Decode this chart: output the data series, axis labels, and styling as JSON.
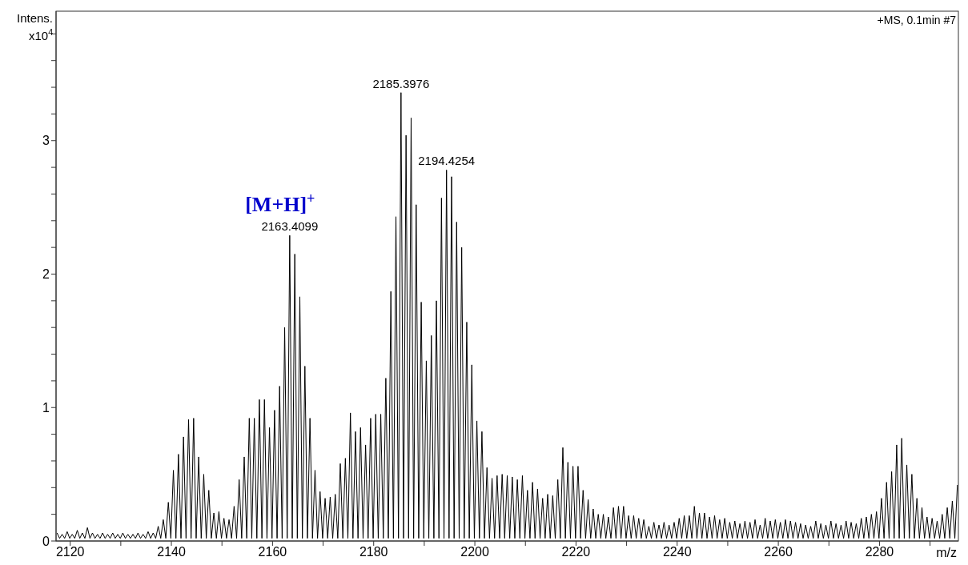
{
  "chart_data": {
    "type": "line",
    "xlabel": "m/z",
    "ylabel": "Intens.\nx10$^{4}$",
    "xlim": [
      2117.2,
      2295.6
    ],
    "ylim": [
      0,
      3.97
    ],
    "xticks": [
      2120,
      {
        "value": 2130,
        "label": null
      },
      2140,
      {
        "value": 2150,
        "label": null
      },
      2160,
      {
        "value": 2170,
        "label": null
      },
      2180,
      {
        "value": 2190,
        "label": null
      },
      2200,
      {
        "value": 2210,
        "label": null
      },
      2220,
      {
        "value": 2230,
        "label": null
      },
      2240,
      {
        "value": 2250,
        "label": null
      },
      2260,
      {
        "value": 2270,
        "label": null
      },
      2280,
      {
        "value": 2290,
        "label": null
      }
    ],
    "yticks": [
      0,
      {
        "value": 0.2,
        "label": null
      },
      {
        "value": 0.4,
        "label": null
      },
      {
        "value": 0.6,
        "label": null
      },
      {
        "value": 0.8,
        "label": null
      },
      1,
      {
        "value": 1.2,
        "label": null
      },
      {
        "value": 1.4,
        "label": null
      },
      {
        "value": 1.6,
        "label": null
      },
      {
        "value": 1.8,
        "label": null
      },
      2,
      {
        "value": 2.2,
        "label": null
      },
      {
        "value": 2.4,
        "label": null
      },
      {
        "value": 2.6,
        "label": null
      },
      {
        "value": 2.8,
        "label": null
      },
      3,
      {
        "value": 3.2,
        "label": null
      },
      {
        "value": 3.4,
        "label": null
      },
      {
        "value": 3.6,
        "label": null
      },
      {
        "value": 3.8,
        "label": null
      }
    ],
    "annotations": [
      "+MS, 0.1min #7",
      {
        "text": "2163.4099",
        "x": 2163.4,
        "y": 2.29
      },
      {
        "text": "[M+H]$^{+}$",
        "x": 2163.4,
        "y": 2.29
      },
      {
        "text": "2185.3976",
        "x": 2185.4,
        "y": 3.36
      },
      {
        "text": "2194.4254",
        "x": 2194.4,
        "y": 2.78
      }
    ],
    "series": [
      {
        "color": "#000000",
        "x": [
          2117.4,
          2117.9,
          2118.4,
          2118.9,
          2119.4,
          2119.9,
          2120.4,
          2120.9,
          2121.4,
          2121.9,
          2122.4,
          2122.9,
          2123.4,
          2123.9,
          2124.4,
          2124.9,
          2125.4,
          2125.9,
          2126.4,
          2126.9,
          2127.4,
          2127.9,
          2128.4,
          2128.9,
          2129.4,
          2129.9,
          2130.4,
          2130.9,
          2131.4,
          2131.9,
          2132.4,
          2132.9,
          2133.4,
          2133.9,
          2134.4,
          2134.9,
          2135.4,
          2135.9,
          2136.4,
          2136.9,
          2137.4,
          2137.9,
          2138.4,
          2138.9,
          2139.4,
          2139.9,
          2140.4,
          2140.9,
          2141.4,
          2141.9,
          2142.4,
          2142.9,
          2143.4,
          2143.9,
          2144.4,
          2144.9,
          2145.4,
          2145.9,
          2146.4,
          2146.9,
          2147.4,
          2147.9,
          2148.4,
          2148.9,
          2149.4,
          2149.9,
          2150.4,
          2150.9,
          2151.4,
          2151.9,
          2152.4,
          2152.9,
          2153.4,
          2153.9,
          2154.4,
          2154.9,
          2155.4,
          2155.9,
          2156.4,
          2156.9,
          2157.4,
          2157.9,
          2158.4,
          2158.9,
          2159.4,
          2159.9,
          2160.4,
          2160.9,
          2161.4,
          2161.9,
          2162.4,
          2162.9,
          2163.4,
          2163.9,
          2164.4,
          2164.9,
          2165.4,
          2165.9,
          2166.4,
          2166.9,
          2167.4,
          2167.9,
          2168.4,
          2168.9,
          2169.4,
          2169.9,
          2170.4,
          2170.9,
          2171.4,
          2171.9,
          2172.4,
          2172.9,
          2173.4,
          2173.9,
          2174.4,
          2174.9,
          2175.4,
          2175.9,
          2176.4,
          2176.9,
          2177.4,
          2177.9,
          2178.4,
          2178.9,
          2179.4,
          2179.9,
          2180.4,
          2180.9,
          2181.4,
          2181.9,
          2182.4,
          2182.9,
          2183.4,
          2183.9,
          2184.4,
          2184.9,
          2185.4,
          2185.9,
          2186.4,
          2186.9,
          2187.4,
          2187.9,
          2188.4,
          2188.9,
          2189.4,
          2189.9,
          2190.4,
          2190.9,
          2191.4,
          2191.9,
          2192.4,
          2192.9,
          2193.4,
          2193.9,
          2194.4,
          2194.9,
          2195.4,
          2195.9,
          2196.4,
          2196.9,
          2197.4,
          2197.9,
          2198.4,
          2198.9,
          2199.4,
          2199.9,
          2200.4,
          2200.9,
          2201.4,
          2201.9,
          2202.4,
          2202.9,
          2203.4,
          2203.9,
          2204.4,
          2204.9,
          2205.4,
          2205.9,
          2206.4,
          2206.9,
          2207.4,
          2207.9,
          2208.4,
          2208.9,
          2209.4,
          2209.9,
          2210.4,
          2210.9,
          2211.4,
          2211.9,
          2212.4,
          2212.9,
          2213.4,
          2213.9,
          2214.4,
          2214.9,
          2215.4,
          2215.9,
          2216.4,
          2216.9,
          2217.4,
          2217.9,
          2218.4,
          2218.9,
          2219.4,
          2219.9,
          2220.4,
          2220.9,
          2221.4,
          2221.9,
          2222.4,
          2222.9,
          2223.4,
          2223.9,
          2224.4,
          2224.9,
          2225.4,
          2225.9,
          2226.4,
          2226.9,
          2227.4,
          2227.9,
          2228.4,
          2228.9,
          2229.4,
          2229.9,
          2230.4,
          2230.9,
          2231.4,
          2231.9,
          2232.4,
          2232.9,
          2233.4,
          2233.9,
          2234.4,
          2234.9,
          2235.4,
          2235.9,
          2236.4,
          2236.9,
          2237.4,
          2237.9,
          2238.4,
          2238.9,
          2239.4,
          2239.9,
          2240.4,
          2240.9,
          2241.4,
          2241.9,
          2242.4,
          2242.9,
          2243.4,
          2243.9,
          2244.4,
          2244.9,
          2245.4,
          2245.9,
          2246.4,
          2246.9,
          2247.4,
          2247.9,
          2248.4,
          2248.9,
          2249.4,
          2249.9,
          2250.4,
          2250.9,
          2251.4,
          2251.9,
          2252.4,
          2252.9,
          2253.4,
          2253.9,
          2254.4,
          2254.9,
          2255.4,
          2255.9,
          2256.4,
          2256.9,
          2257.4,
          2257.9,
          2258.4,
          2258.9,
          2259.4,
          2259.9,
          2260.4,
          2260.9,
          2261.4,
          2261.9,
          2262.4,
          2262.9,
          2263.4,
          2263.9,
          2264.4,
          2264.9,
          2265.4,
          2265.9,
          2266.4,
          2266.9,
          2267.4,
          2267.9,
          2268.4,
          2268.9,
          2269.4,
          2269.9,
          2270.4,
          2270.9,
          2271.4,
          2271.9,
          2272.4,
          2272.9,
          2273.4,
          2273.9,
          2274.4,
          2274.9,
          2275.4,
          2275.9,
          2276.4,
          2276.9,
          2277.4,
          2277.9,
          2278.4,
          2278.9,
          2279.4,
          2279.9,
          2280.4,
          2280.9,
          2281.4,
          2281.9,
          2282.4,
          2282.9,
          2283.4,
          2283.9,
          2284.4,
          2284.9,
          2285.4,
          2285.9,
          2286.4,
          2286.9,
          2287.4,
          2287.9,
          2288.4,
          2288.9,
          2289.4,
          2289.9,
          2290.4,
          2290.9,
          2291.4,
          2291.9,
          2292.4,
          2292.9,
          2293.4,
          2293.9,
          2294.4,
          2294.9,
          2295.4
        ],
        "values": [
          0.06,
          0.02,
          0.05,
          0.02,
          0.07,
          0.02,
          0.05,
          0.02,
          0.08,
          0.02,
          0.06,
          0.02,
          0.1,
          0.02,
          0.06,
          0.02,
          0.05,
          0.02,
          0.06,
          0.02,
          0.05,
          0.02,
          0.06,
          0.02,
          0.05,
          0.02,
          0.06,
          0.02,
          0.05,
          0.02,
          0.05,
          0.02,
          0.06,
          0.02,
          0.05,
          0.02,
          0.07,
          0.02,
          0.06,
          0.02,
          0.11,
          0.02,
          0.16,
          0.02,
          0.29,
          0.02,
          0.53,
          0.02,
          0.65,
          0.02,
          0.78,
          0.02,
          0.91,
          0.02,
          0.92,
          0.02,
          0.63,
          0.02,
          0.5,
          0.02,
          0.38,
          0.02,
          0.21,
          0.02,
          0.22,
          0.02,
          0.17,
          0.02,
          0.16,
          0.02,
          0.26,
          0.02,
          0.46,
          0.02,
          0.63,
          0.02,
          0.92,
          0.02,
          0.92,
          0.02,
          1.06,
          0.02,
          1.06,
          0.02,
          0.85,
          0.02,
          0.98,
          0.02,
          1.16,
          0.02,
          1.6,
          0.02,
          2.29,
          0.02,
          2.15,
          0.02,
          1.83,
          0.02,
          1.31,
          0.02,
          0.92,
          0.02,
          0.53,
          0.02,
          0.37,
          0.02,
          0.32,
          0.02,
          0.33,
          0.02,
          0.35,
          0.02,
          0.58,
          0.02,
          0.62,
          0.02,
          0.96,
          0.02,
          0.82,
          0.02,
          0.85,
          0.02,
          0.72,
          0.02,
          0.92,
          0.02,
          0.95,
          0.02,
          0.95,
          0.02,
          1.22,
          0.02,
          1.87,
          0.02,
          2.43,
          0.02,
          3.36,
          0.02,
          3.04,
          0.02,
          3.17,
          0.02,
          2.52,
          0.02,
          1.79,
          0.02,
          1.35,
          0.02,
          1.54,
          0.02,
          1.8,
          0.02,
          2.57,
          0.02,
          2.78,
          0.02,
          2.73,
          0.02,
          2.39,
          0.02,
          2.2,
          0.02,
          1.64,
          0.02,
          1.32,
          0.02,
          0.9,
          0.02,
          0.82,
          0.02,
          0.55,
          0.02,
          0.47,
          0.02,
          0.49,
          0.02,
          0.5,
          0.02,
          0.49,
          0.02,
          0.48,
          0.02,
          0.46,
          0.02,
          0.49,
          0.02,
          0.38,
          0.02,
          0.44,
          0.02,
          0.39,
          0.02,
          0.32,
          0.02,
          0.35,
          0.02,
          0.34,
          0.02,
          0.46,
          0.02,
          0.7,
          0.02,
          0.59,
          0.02,
          0.56,
          0.02,
          0.56,
          0.02,
          0.38,
          0.02,
          0.31,
          0.02,
          0.24,
          0.02,
          0.2,
          0.02,
          0.2,
          0.02,
          0.18,
          0.02,
          0.25,
          0.02,
          0.26,
          0.02,
          0.26,
          0.02,
          0.19,
          0.02,
          0.19,
          0.02,
          0.17,
          0.02,
          0.16,
          0.02,
          0.11,
          0.02,
          0.14,
          0.02,
          0.12,
          0.02,
          0.14,
          0.02,
          0.12,
          0.02,
          0.14,
          0.02,
          0.17,
          0.02,
          0.19,
          0.02,
          0.19,
          0.02,
          0.26,
          0.02,
          0.21,
          0.02,
          0.21,
          0.02,
          0.18,
          0.02,
          0.19,
          0.02,
          0.16,
          0.02,
          0.17,
          0.02,
          0.14,
          0.02,
          0.15,
          0.02,
          0.13,
          0.02,
          0.15,
          0.02,
          0.14,
          0.02,
          0.16,
          0.02,
          0.12,
          0.02,
          0.17,
          0.02,
          0.15,
          0.02,
          0.16,
          0.02,
          0.14,
          0.02,
          0.16,
          0.02,
          0.15,
          0.02,
          0.14,
          0.02,
          0.13,
          0.02,
          0.12,
          0.02,
          0.11,
          0.02,
          0.15,
          0.02,
          0.13,
          0.02,
          0.12,
          0.02,
          0.15,
          0.02,
          0.13,
          0.02,
          0.12,
          0.02,
          0.15,
          0.02,
          0.14,
          0.02,
          0.13,
          0.02,
          0.17,
          0.02,
          0.18,
          0.02,
          0.2,
          0.02,
          0.22,
          0.02,
          0.32,
          0.02,
          0.44,
          0.02,
          0.52,
          0.02,
          0.72,
          0.02,
          0.77,
          0.02,
          0.57,
          0.02,
          0.5,
          0.02,
          0.32,
          0.02,
          0.25,
          0.02,
          0.18,
          0.02,
          0.17,
          0.02,
          0.15,
          0.02,
          0.2,
          0.02,
          0.25,
          0.02,
          0.3,
          0.02,
          0.42
        ]
      }
    ]
  }
}
